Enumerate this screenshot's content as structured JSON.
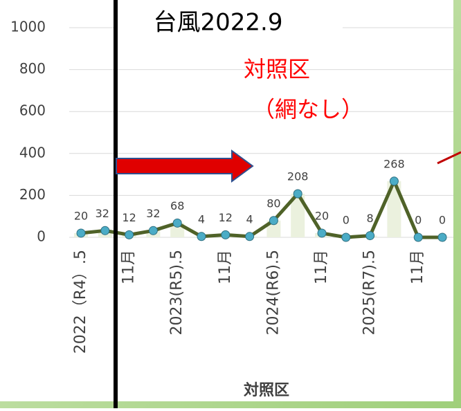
{
  "chart_data": {
    "type": "line",
    "annotations": [
      "台風2022.9",
      "対照区",
      "（網なし）"
    ],
    "x_label": "対照区",
    "categories": [
      "2022（R4）.5",
      null,
      "11月",
      null,
      "2023(R5).5",
      null,
      "11月",
      null,
      "2024(R6).5",
      null,
      "11月",
      null,
      "2025(R7).5",
      null,
      "11月",
      null
    ],
    "series": [
      {
        "name": "対照区",
        "color": "#4f6228",
        "marker_color": "#4bacc6",
        "bar_color": "#ebf1de",
        "values": [
          20,
          32,
          12,
          32,
          68,
          4,
          12,
          4,
          80,
          208,
          20,
          0,
          8,
          268,
          0,
          0
        ]
      }
    ],
    "ylim": [
      0,
      1000
    ],
    "yticks": [
      0,
      200,
      400,
      600,
      800,
      1000
    ],
    "grid": true
  }
}
